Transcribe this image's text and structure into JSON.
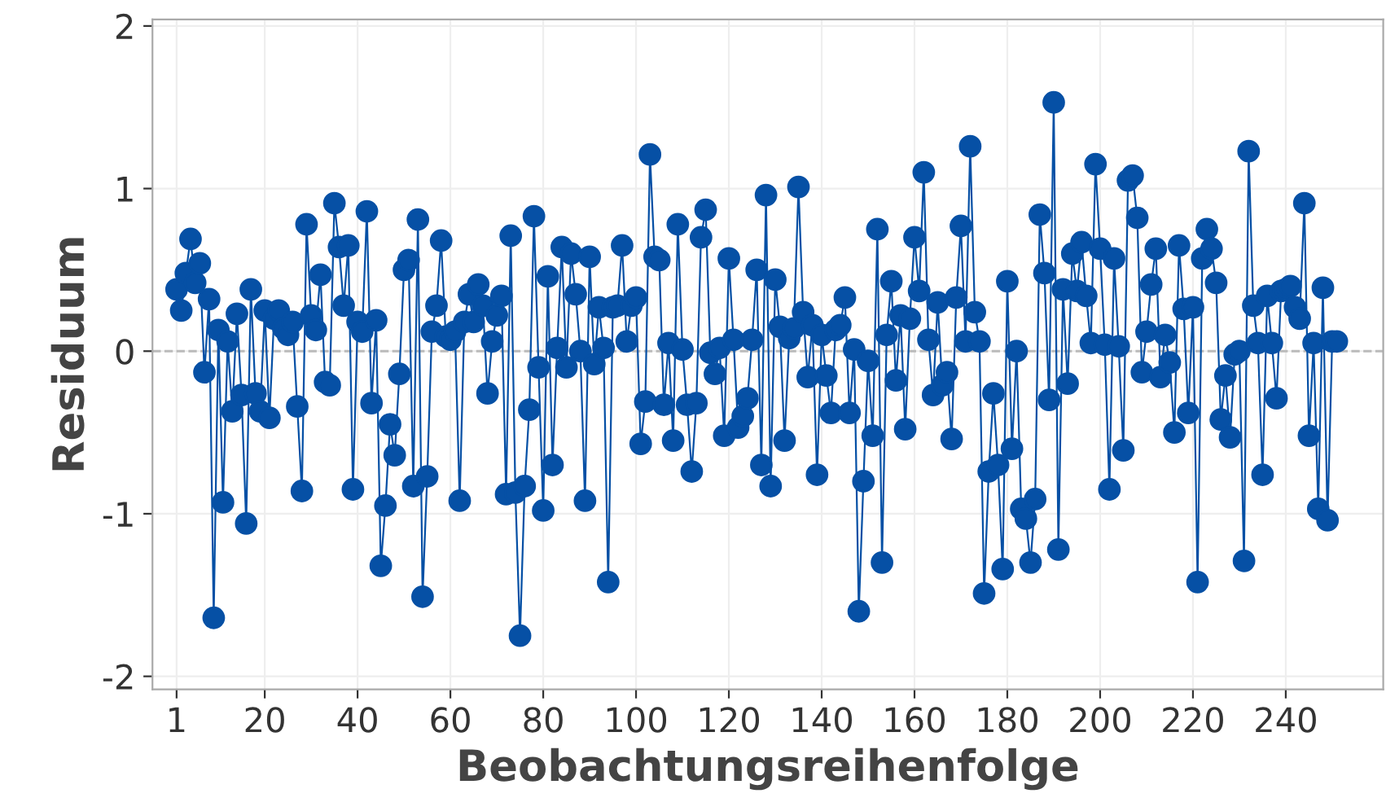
{
  "chart_data": {
    "type": "line",
    "xlabel": "Beobachtungsreihenfolge",
    "ylabel": "Residuum",
    "marker": "circle",
    "line_style": "solid",
    "grid": true,
    "color": "#0650a5",
    "xlim": [
      -4.2,
      261
    ],
    "ylim": [
      -2.08,
      2.04
    ],
    "xticks": [
      1,
      20,
      40,
      60,
      80,
      100,
      120,
      140,
      160,
      180,
      200,
      220,
      240
    ],
    "yticks": [
      -2,
      -1,
      0,
      1,
      2
    ],
    "ref_lines": [
      {
        "axis": "y",
        "value": 0,
        "color": "#bbbbbb",
        "line_style": "dashed"
      }
    ],
    "x": [
      1,
      2,
      3,
      4,
      5,
      6,
      7,
      8,
      9,
      10,
      11,
      12,
      13,
      14,
      15,
      16,
      17,
      18,
      19,
      20,
      21,
      22,
      23,
      24,
      25,
      26,
      27,
      28,
      29,
      30,
      31,
      32,
      33,
      34,
      35,
      36,
      37,
      38,
      39,
      40,
      41,
      42,
      43,
      44,
      45,
      46,
      47,
      48,
      49,
      50,
      51,
      52,
      53,
      54,
      55,
      56,
      57,
      58,
      59,
      60,
      61,
      62,
      63,
      64,
      65,
      66,
      67,
      68,
      69,
      70,
      71,
      72,
      73,
      74,
      75,
      76,
      77,
      78,
      79,
      80,
      81,
      82,
      83,
      84,
      85,
      86,
      87,
      88,
      89,
      90,
      91,
      92,
      93,
      94,
      95,
      96,
      97,
      98,
      99,
      100,
      101,
      102,
      103,
      104,
      105,
      106,
      107,
      108,
      109,
      110,
      111,
      112,
      113,
      114,
      115,
      116,
      117,
      118,
      119,
      120,
      121,
      122,
      123,
      124,
      125,
      126,
      127,
      128,
      129,
      130,
      131,
      132,
      133,
      134,
      135,
      136,
      137,
      138,
      139,
      140,
      141,
      142,
      143,
      144,
      145,
      146,
      147,
      148,
      149,
      150,
      151,
      152,
      153,
      154,
      155,
      156,
      157,
      158,
      159,
      160,
      161,
      162,
      163,
      164,
      165,
      166,
      167,
      168,
      169,
      170,
      171,
      172,
      173,
      174,
      175,
      176,
      177,
      178,
      179,
      180,
      181,
      182,
      183,
      184,
      185,
      186,
      187,
      188,
      189,
      190,
      191,
      192,
      193,
      194,
      195,
      196,
      197,
      198,
      199,
      200,
      201,
      202,
      203,
      204,
      205,
      206,
      207,
      208,
      209,
      210,
      211,
      212,
      213,
      214,
      215,
      216,
      217,
      218,
      219,
      220,
      221,
      222,
      223,
      224,
      225,
      226,
      227,
      228,
      229,
      230,
      231,
      232,
      233,
      234,
      235,
      236,
      237,
      238,
      239,
      240,
      241,
      242,
      243,
      244,
      245,
      246,
      247,
      248,
      249,
      250,
      251
    ],
    "values": [
      0.38,
      0.25,
      0.48,
      0.69,
      0.42,
      0.54,
      -0.13,
      0.32,
      -1.64,
      0.13,
      -0.93,
      0.06,
      -0.37,
      0.23,
      -0.27,
      -1.06,
      0.38,
      -0.26,
      -0.37,
      0.25,
      -0.41,
      0.2,
      0.25,
      0.14,
      0.1,
      0.18,
      -0.34,
      -0.86,
      0.78,
      0.22,
      0.13,
      0.47,
      -0.19,
      -0.21,
      0.91,
      0.64,
      0.28,
      0.65,
      -0.85,
      0.18,
      0.12,
      0.86,
      -0.32,
      0.19,
      -1.32,
      -0.95,
      -0.45,
      -0.64,
      -0.14,
      0.5,
      0.56,
      -0.83,
      0.81,
      -1.51,
      -0.77,
      0.12,
      0.28,
      0.68,
      0.09,
      0.07,
      0.12,
      -0.92,
      0.18,
      0.35,
      0.18,
      0.41,
      0.28,
      -0.26,
      0.06,
      0.22,
      0.34,
      -0.88,
      0.71,
      -0.87,
      -1.75,
      -0.83,
      -0.36,
      0.83,
      -0.1,
      -0.98,
      0.46,
      -0.7,
      0.02,
      0.64,
      -0.1,
      0.6,
      0.35,
      0.0,
      -0.92,
      0.58,
      -0.08,
      0.27,
      0.02,
      -1.42,
      0.27,
      0.28,
      0.65,
      0.06,
      0.28,
      0.33,
      -0.57,
      -0.31,
      1.21,
      0.58,
      0.56,
      -0.33,
      0.05,
      -0.55,
      0.78,
      0.01,
      -0.33,
      -0.74,
      -0.32,
      0.7,
      0.87,
      -0.01,
      -0.14,
      0.02,
      -0.52,
      0.57,
      0.07,
      -0.47,
      -0.4,
      -0.29,
      0.07,
      0.5,
      -0.7,
      0.96,
      -0.83,
      0.44,
      0.15,
      -0.55,
      0.08,
      0.14,
      1.01,
      0.24,
      -0.16,
      0.16,
      -0.76,
      0.1,
      -0.15,
      -0.38,
      0.13,
      0.16,
      0.33,
      -0.38,
      0.01,
      -1.6,
      -0.8,
      -0.06,
      -0.52,
      0.75,
      -1.3,
      0.1,
      0.43,
      -0.18,
      0.22,
      -0.48,
      0.2,
      0.7,
      0.37,
      1.1,
      0.07,
      -0.27,
      0.3,
      -0.21,
      -0.13,
      -0.54,
      0.33,
      0.77,
      0.06,
      1.26,
      0.24,
      0.06,
      -1.49,
      -0.74,
      -0.26,
      -0.7,
      -1.34,
      0.43,
      -0.6,
      0.0,
      -0.97,
      -1.03,
      -1.3,
      -0.91,
      0.84,
      0.48,
      -0.3,
      1.53,
      -1.22,
      0.38,
      -0.2,
      0.6,
      0.37,
      0.67,
      0.34,
      0.05,
      1.15,
      0.63,
      0.04,
      -0.85,
      0.57,
      0.03,
      -0.61,
      1.05,
      1.08,
      0.82,
      -0.13,
      0.12,
      0.41,
      0.63,
      -0.16,
      0.1,
      -0.07,
      -0.5,
      0.65,
      0.26,
      -0.38,
      0.27,
      -1.42,
      0.57,
      0.75,
      0.63,
      0.42,
      -0.42,
      -0.15,
      -0.53,
      -0.02,
      0.0,
      -1.29,
      1.23,
      0.28,
      0.05,
      -0.76,
      0.34,
      0.05,
      -0.29,
      0.37,
      0.38,
      0.4,
      0.27,
      0.2,
      0.91,
      -0.52,
      0.05,
      -0.97,
      0.39,
      -1.04,
      0.06,
      0.06
    ]
  }
}
